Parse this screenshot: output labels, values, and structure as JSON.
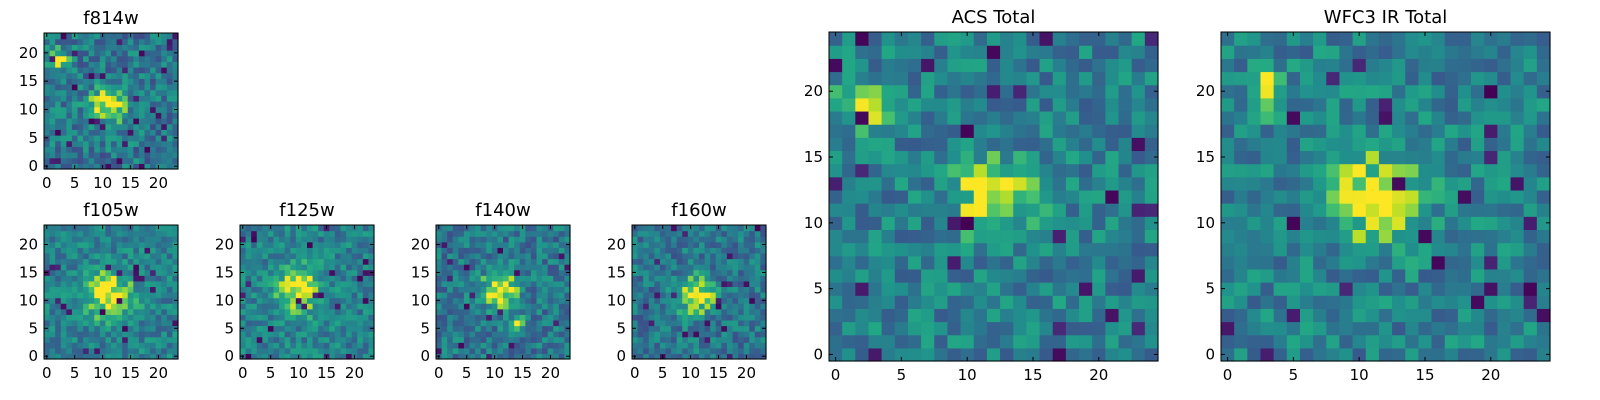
{
  "chart_data": [
    {
      "type": "heatmap",
      "title": "f814w",
      "rows": 24,
      "cols": 24,
      "xticks": [
        0,
        5,
        10,
        15,
        20
      ],
      "yticks": [
        0,
        5,
        10,
        15,
        20
      ],
      "xlim": [
        -0.5,
        23.5
      ],
      "ylim": [
        -0.5,
        23.5
      ],
      "colormap": "viridis",
      "seed": 11,
      "blobs": [
        {
          "x": 11,
          "y": 11,
          "sigma": 2.2,
          "amp": 0.55
        },
        {
          "x": 2,
          "y": 19,
          "sigma": 1.3,
          "amp": 0.5
        }
      ],
      "noise": 0.22,
      "base": 0.5,
      "dark_fraction": 0.05
    },
    {
      "type": "heatmap",
      "title": "f105w",
      "rows": 24,
      "cols": 24,
      "xticks": [
        0,
        5,
        10,
        15,
        20
      ],
      "yticks": [
        0,
        5,
        10,
        15,
        20
      ],
      "xlim": [
        -0.5,
        23.5
      ],
      "ylim": [
        -0.5,
        23.5
      ],
      "colormap": "viridis",
      "seed": 23,
      "blobs": [
        {
          "x": 11,
          "y": 11,
          "sigma": 3.0,
          "amp": 0.5
        }
      ],
      "noise": 0.18,
      "base": 0.55,
      "dark_fraction": 0.03
    },
    {
      "type": "heatmap",
      "title": "f125w",
      "rows": 24,
      "cols": 24,
      "xticks": [
        0,
        5,
        10,
        15,
        20
      ],
      "yticks": [
        0,
        5,
        10,
        15,
        20
      ],
      "xlim": [
        -0.5,
        23.5
      ],
      "ylim": [
        -0.5,
        23.5
      ],
      "colormap": "viridis",
      "seed": 37,
      "blobs": [
        {
          "x": 10,
          "y": 12,
          "sigma": 2.8,
          "amp": 0.5
        }
      ],
      "noise": 0.18,
      "base": 0.55,
      "dark_fraction": 0.04
    },
    {
      "type": "heatmap",
      "title": "f140w",
      "rows": 24,
      "cols": 24,
      "xticks": [
        0,
        5,
        10,
        15,
        20
      ],
      "yticks": [
        0,
        5,
        10,
        15,
        20
      ],
      "xlim": [
        -0.5,
        23.5
      ],
      "ylim": [
        -0.5,
        23.5
      ],
      "colormap": "viridis",
      "seed": 41,
      "blobs": [
        {
          "x": 11,
          "y": 12,
          "sigma": 2.3,
          "amp": 0.55
        },
        {
          "x": 14,
          "y": 6,
          "sigma": 0.9,
          "amp": 0.45
        }
      ],
      "noise": 0.2,
      "base": 0.5,
      "dark_fraction": 0.04
    },
    {
      "type": "heatmap",
      "title": "f160w",
      "rows": 24,
      "cols": 24,
      "xticks": [
        0,
        5,
        10,
        15,
        20
      ],
      "yticks": [
        0,
        5,
        10,
        15,
        20
      ],
      "xlim": [
        -0.5,
        23.5
      ],
      "ylim": [
        -0.5,
        23.5
      ],
      "colormap": "viridis",
      "seed": 53,
      "blobs": [
        {
          "x": 11,
          "y": 11,
          "sigma": 2.4,
          "amp": 0.55
        }
      ],
      "noise": 0.2,
      "base": 0.5,
      "dark_fraction": 0.05
    },
    {
      "type": "heatmap",
      "title": "ACS Total",
      "rows": 25,
      "cols": 25,
      "xticks": [
        0,
        5,
        10,
        15,
        20
      ],
      "yticks": [
        0,
        5,
        10,
        15,
        20
      ],
      "xlim": [
        -0.5,
        24.5
      ],
      "ylim": [
        -0.5,
        24.5
      ],
      "colormap": "viridis",
      "seed": 67,
      "blobs": [
        {
          "x": 12,
          "y": 12,
          "sigma": 2.0,
          "amp": 0.5
        },
        {
          "x": 2,
          "y": 19,
          "sigma": 1.2,
          "amp": 0.5
        }
      ],
      "noise": 0.2,
      "base": 0.55,
      "dark_fraction": 0.04
    },
    {
      "type": "heatmap",
      "title": "WFC3 IR Total",
      "rows": 25,
      "cols": 25,
      "xticks": [
        0,
        5,
        10,
        15,
        20
      ],
      "yticks": [
        0,
        5,
        10,
        15,
        20
      ],
      "xlim": [
        -0.5,
        24.5
      ],
      "ylim": [
        -0.5,
        24.5
      ],
      "colormap": "viridis",
      "seed": 79,
      "blobs": [
        {
          "x": 11,
          "y": 12,
          "sigma": 2.3,
          "amp": 0.5
        },
        {
          "x": 3,
          "y": 20,
          "sigma": 1.0,
          "amp": 0.45
        }
      ],
      "noise": 0.2,
      "base": 0.55,
      "dark_fraction": 0.04
    }
  ]
}
